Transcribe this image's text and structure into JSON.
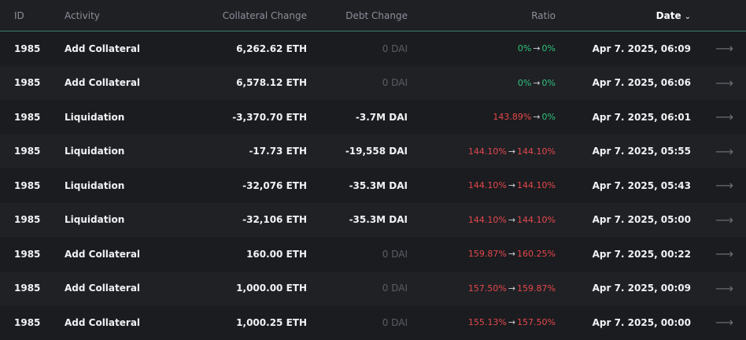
{
  "headers": {
    "id": "ID",
    "activity": "Activity",
    "collateral": "Collateral Change",
    "debt": "Debt Change",
    "ratio": "Ratio",
    "date": "Date"
  },
  "rows": [
    {
      "id": "1985",
      "activity": "Add Collateral",
      "collateral": "6,262.62 ETH",
      "debt": "0 DAI",
      "debt_muted": true,
      "ratio_from": "0%",
      "ratio_to": "0%",
      "from_color": "green",
      "to_color": "green",
      "date": "Apr 7. 2025, 06:09"
    },
    {
      "id": "1985",
      "activity": "Add Collateral",
      "collateral": "6,578.12 ETH",
      "debt": "0 DAI",
      "debt_muted": true,
      "ratio_from": "0%",
      "ratio_to": "0%",
      "from_color": "green",
      "to_color": "green",
      "date": "Apr 7. 2025, 06:06"
    },
    {
      "id": "1985",
      "activity": "Liquidation",
      "collateral": "-3,370.70 ETH",
      "debt": "-3.7M DAI",
      "debt_muted": false,
      "ratio_from": "143.89%",
      "ratio_to": "0%",
      "from_color": "red",
      "to_color": "green",
      "date": "Apr 7. 2025, 06:01"
    },
    {
      "id": "1985",
      "activity": "Liquidation",
      "collateral": "-17.73 ETH",
      "debt": "-19,558 DAI",
      "debt_muted": false,
      "ratio_from": "144.10%",
      "ratio_to": "144.10%",
      "from_color": "red",
      "to_color": "red",
      "date": "Apr 7. 2025, 05:55"
    },
    {
      "id": "1985",
      "activity": "Liquidation",
      "collateral": "-32,076 ETH",
      "debt": "-35.3M DAI",
      "debt_muted": false,
      "ratio_from": "144.10%",
      "ratio_to": "144.10%",
      "from_color": "red",
      "to_color": "red",
      "date": "Apr 7. 2025, 05:43"
    },
    {
      "id": "1985",
      "activity": "Liquidation",
      "collateral": "-32,106 ETH",
      "debt": "-35.3M DAI",
      "debt_muted": false,
      "ratio_from": "144.10%",
      "ratio_to": "144.10%",
      "from_color": "red",
      "to_color": "red",
      "date": "Apr 7. 2025, 05:00"
    },
    {
      "id": "1985",
      "activity": "Add Collateral",
      "collateral": "160.00 ETH",
      "debt": "0 DAI",
      "debt_muted": true,
      "ratio_from": "159.87%",
      "ratio_to": "160.25%",
      "from_color": "red",
      "to_color": "red",
      "date": "Apr 7. 2025, 00:22"
    },
    {
      "id": "1985",
      "activity": "Add Collateral",
      "collateral": "1,000.00 ETH",
      "debt": "0 DAI",
      "debt_muted": true,
      "ratio_from": "157.50%",
      "ratio_to": "159.87%",
      "from_color": "red",
      "to_color": "red",
      "date": "Apr 7. 2025, 00:09"
    },
    {
      "id": "1985",
      "activity": "Add Collateral",
      "collateral": "1,000.25 ETH",
      "debt": "0 DAI",
      "debt_muted": true,
      "ratio_from": "155.13%",
      "ratio_to": "157.50%",
      "from_color": "red",
      "to_color": "red",
      "date": "Apr 7. 2025, 00:00"
    }
  ],
  "colors": {
    "green": "#2ec27e",
    "red": "#e5484d",
    "accent_line": "#3f7f6f"
  },
  "icons": {
    "sort": "chevron-down-icon",
    "row_action": "arrow-right-icon"
  }
}
